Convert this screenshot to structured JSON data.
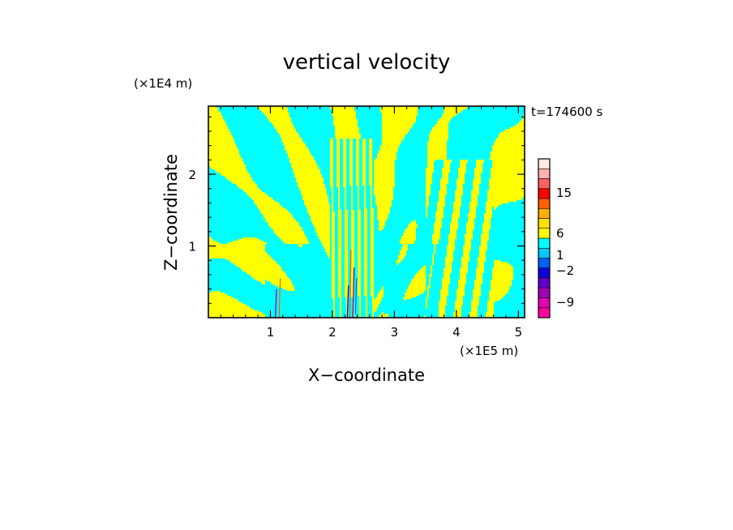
{
  "chart_data": {
    "type": "heatmap",
    "title": "vertical velocity",
    "xlabel": "X−coordinate",
    "ylabel": "Z−coordinate",
    "x_multiplier": "(×1E5 m)",
    "y_multiplier": "(×1E4 m)",
    "time_label": "t=174600 s",
    "xlim": [
      0,
      5.1
    ],
    "ylim": [
      0,
      2.95
    ],
    "x_ticks": [
      1,
      2,
      3,
      4,
      5
    ],
    "x_tick_labels": [
      "1",
      "2",
      "3",
      "4",
      "5"
    ],
    "y_ticks": [
      1,
      2
    ],
    "y_tick_labels": [
      "1",
      "2"
    ],
    "grid": false,
    "colorbar": {
      "placement": "right",
      "levels": [
        {
          "color": "#ff00a0"
        },
        {
          "color": "#e000b0"
        },
        {
          "color": "#a000b8"
        },
        {
          "color": "#6000c8"
        },
        {
          "color": "#1000d8"
        },
        {
          "color": "#0060ff"
        },
        {
          "color": "#00c8ff"
        },
        {
          "color": "#00ffff"
        },
        {
          "color": "#ffff00"
        },
        {
          "color": "#ffe000"
        },
        {
          "color": "#ffb000"
        },
        {
          "color": "#ff6000"
        },
        {
          "color": "#ff0000"
        },
        {
          "color": "#ff6060"
        },
        {
          "color": "#ffb0b0"
        },
        {
          "color": "#ffe8e8"
        }
      ],
      "labels": [
        {
          "text": "-9",
          "value": -9
        },
        {
          "text": "-2",
          "value": -2
        },
        {
          "text": "1",
          "value": 1
        },
        {
          "text": "6",
          "value": 6
        },
        {
          "text": "15",
          "value": 15
        }
      ]
    },
    "dominant_colors": {
      "negative": "#00ffff",
      "positive": "#ffff00"
    },
    "feature_bands": [
      {
        "x_center": 2.3,
        "note": "narrow plume"
      },
      {
        "x_center": 1.1,
        "note": "weak streaks"
      },
      {
        "x_center": 3.9,
        "note": "striations"
      }
    ]
  }
}
